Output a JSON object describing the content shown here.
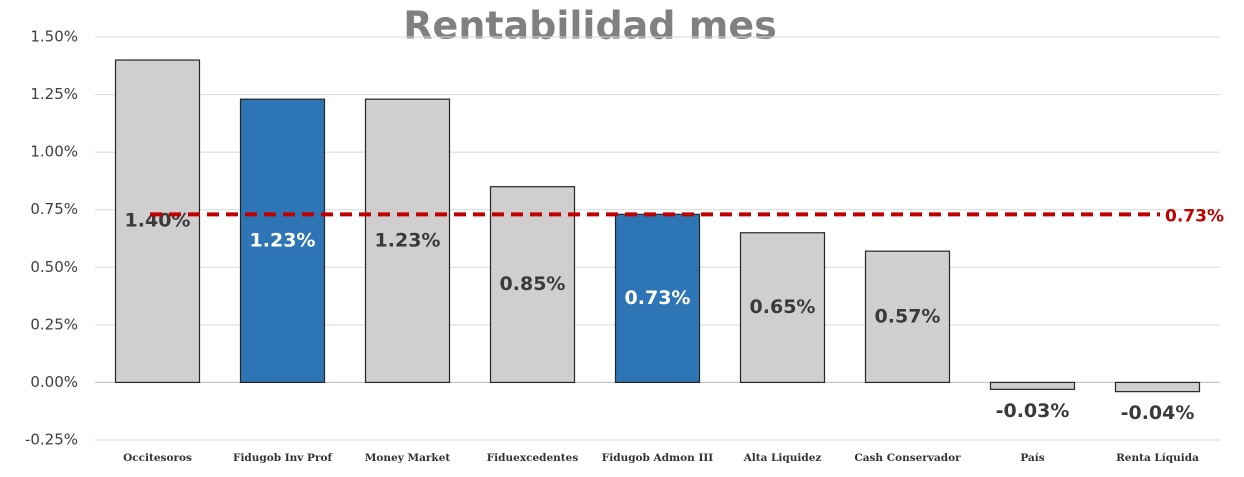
{
  "chart_data": {
    "type": "bar",
    "title": "Rentabilidad mes",
    "categories": [
      "Occitesoros",
      "Fidugob Inv Prof",
      "Money Market",
      "Fiduexcedentes",
      "Fidugob Admon III",
      "Alta Liquidez",
      "Cash Conservador",
      "País",
      "Renta Líquida"
    ],
    "values": [
      1.4,
      1.23,
      1.23,
      0.85,
      0.73,
      0.65,
      0.57,
      -0.03,
      -0.04
    ],
    "value_labels": [
      "1.40%",
      "1.23%",
      "1.23%",
      "0.85%",
      "0.73%",
      "0.65%",
      "0.57%",
      "-0.03%",
      "-0.04%"
    ],
    "colors": [
      "#d0cece",
      "#2e75b6",
      "#d0cece",
      "#d0cece",
      "#2e75b6",
      "#d0cece",
      "#d0cece",
      "#d0cece",
      "#d0cece"
    ],
    "ylim": [
      -0.25,
      1.5
    ],
    "yticks": [
      {
        "value": -0.25,
        "label": "-0.25%"
      },
      {
        "value": 0,
        "label": "0.00%"
      },
      {
        "value": 0.25,
        "label": "0.25%"
      },
      {
        "value": 0.5,
        "label": "0.50%"
      },
      {
        "value": 0.75,
        "label": "0.75%"
      },
      {
        "value": 1,
        "label": "1.00%"
      },
      {
        "value": 1.25,
        "label": "1.25%"
      },
      {
        "value": 1.5,
        "label": "1.50%"
      }
    ],
    "grid": true,
    "reference_line": {
      "value": 0.73,
      "label": "0.73%",
      "color": "#c00000"
    }
  }
}
